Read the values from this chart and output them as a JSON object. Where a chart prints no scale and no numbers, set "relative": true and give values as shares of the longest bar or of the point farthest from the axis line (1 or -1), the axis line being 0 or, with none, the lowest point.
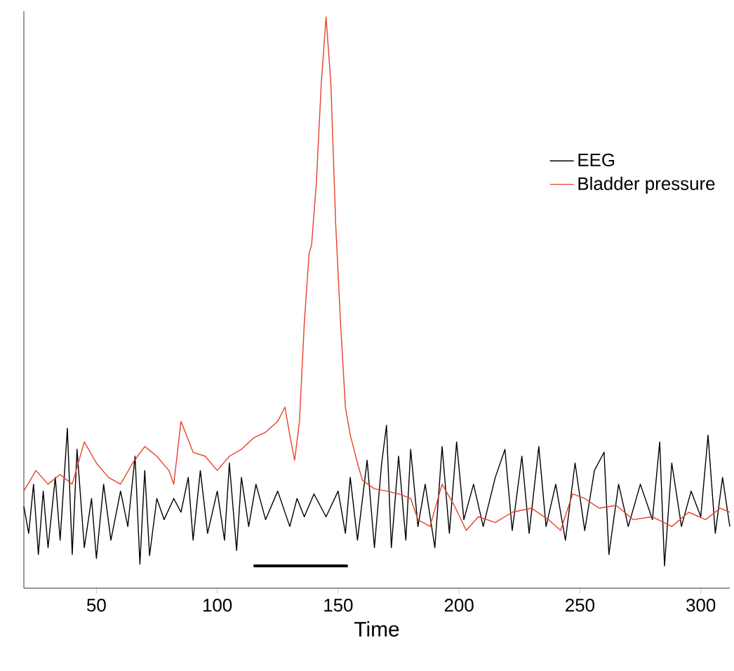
{
  "chart_data": {
    "type": "line",
    "xlabel": "Time",
    "relative": true,
    "xlim": [
      20,
      312
    ],
    "xticks": [
      50,
      100,
      150,
      200,
      250,
      300
    ],
    "legend": "right",
    "grid": false,
    "series": [
      {
        "name": "EEG",
        "color": "#000000",
        "x": [
          20,
          22,
          24,
          26,
          28,
          30,
          33,
          35,
          38,
          40,
          42,
          45,
          48,
          50,
          53,
          56,
          60,
          63,
          66,
          68,
          70,
          72,
          75,
          78,
          82,
          85,
          88,
          90,
          93,
          96,
          100,
          103,
          105,
          108,
          110,
          113,
          116,
          120,
          125,
          130,
          133,
          136,
          140,
          145,
          150,
          153,
          155,
          158,
          162,
          165,
          168,
          170,
          172,
          175,
          178,
          180,
          183,
          186,
          190,
          193,
          196,
          199,
          202,
          206,
          210,
          215,
          219,
          222,
          226,
          229,
          233,
          236,
          240,
          244,
          248,
          252,
          256,
          260,
          262,
          266,
          270,
          275,
          280,
          283,
          285,
          288,
          292,
          296,
          300,
          303,
          306,
          309,
          312
        ],
        "values": [
          0.143,
          0.096,
          0.182,
          0.059,
          0.17,
          0.071,
          0.194,
          0.084,
          0.28,
          0.059,
          0.243,
          0.071,
          0.157,
          0.052,
          0.182,
          0.084,
          0.17,
          0.108,
          0.231,
          0.042,
          0.206,
          0.057,
          0.157,
          0.12,
          0.157,
          0.133,
          0.194,
          0.084,
          0.206,
          0.096,
          0.17,
          0.084,
          0.219,
          0.066,
          0.194,
          0.108,
          0.182,
          0.12,
          0.17,
          0.108,
          0.157,
          0.125,
          0.165,
          0.125,
          0.17,
          0.096,
          0.194,
          0.084,
          0.224,
          0.071,
          0.219,
          0.285,
          0.071,
          0.231,
          0.084,
          0.243,
          0.108,
          0.182,
          0.071,
          0.248,
          0.096,
          0.256,
          0.12,
          0.182,
          0.108,
          0.194,
          0.243,
          0.101,
          0.231,
          0.096,
          0.248,
          0.108,
          0.182,
          0.084,
          0.219,
          0.101,
          0.206,
          0.238,
          0.059,
          0.182,
          0.108,
          0.182,
          0.12,
          0.256,
          0.039,
          0.219,
          0.108,
          0.17,
          0.125,
          0.268,
          0.096,
          0.194,
          0.108
        ]
      },
      {
        "name": "Bladder pressure",
        "color": "#e8402a",
        "x": [
          20,
          25,
          30,
          35,
          40,
          45,
          50,
          55,
          60,
          65,
          70,
          75,
          80,
          82,
          85,
          90,
          95,
          100,
          105,
          110,
          115,
          120,
          125,
          128,
          130,
          132,
          134,
          136,
          138,
          139,
          141,
          143,
          145,
          147,
          149,
          151,
          153,
          155,
          158,
          160,
          165,
          170,
          175,
          180,
          183,
          188,
          193,
          198,
          203,
          208,
          215,
          222,
          230,
          237,
          242,
          247,
          252,
          258,
          265,
          272,
          280,
          288,
          295,
          302,
          308,
          312
        ],
        "values": [
          0.17,
          0.206,
          0.182,
          0.199,
          0.182,
          0.256,
          0.219,
          0.194,
          0.182,
          0.219,
          0.248,
          0.231,
          0.206,
          0.182,
          0.292,
          0.238,
          0.231,
          0.206,
          0.231,
          0.243,
          0.263,
          0.273,
          0.292,
          0.317,
          0.268,
          0.224,
          0.292,
          0.464,
          0.587,
          0.6,
          0.71,
          0.882,
          1,
          0.882,
          0.636,
          0.464,
          0.317,
          0.268,
          0.219,
          0.189,
          0.174,
          0.17,
          0.165,
          0.157,
          0.12,
          0.108,
          0.182,
          0.145,
          0.101,
          0.125,
          0.115,
          0.133,
          0.14,
          0.12,
          0.101,
          0.165,
          0.157,
          0.14,
          0.145,
          0.12,
          0.125,
          0.108,
          0.133,
          0.12,
          0.14,
          0.133
        ]
      },
      {
        "color": "#000000",
        "x": [
          115,
          154
        ],
        "values": [
          0.039,
          0.039
        ]
      }
    ]
  }
}
